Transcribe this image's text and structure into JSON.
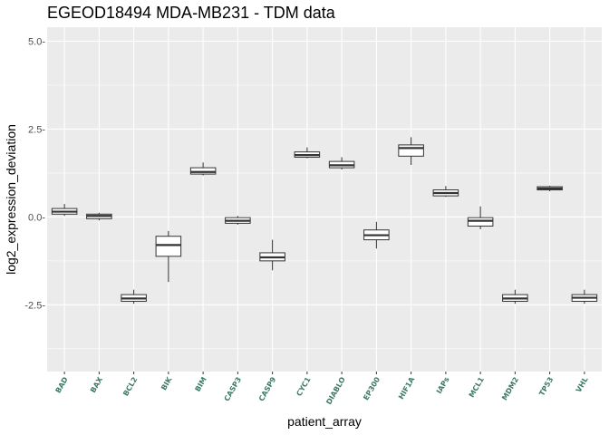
{
  "chart_data": {
    "type": "boxplot",
    "title": "EGEOD18494 MDA-MB231 - TDM data",
    "xlabel": "patient_array",
    "ylabel": "log2_expression_deviation",
    "ylim": [
      -4.4,
      5.4
    ],
    "yticks": [
      5.0,
      2.5,
      0.0,
      -2.5
    ],
    "ytick_labels": [
      "5.0-",
      "2.5-",
      "0.0-",
      "-2.5-"
    ],
    "grid": true,
    "legend": "none",
    "colors": {
      "panel_bg": "#ebebeb",
      "grid": "#ffffff",
      "box_fill": "#ffffff",
      "box_line": "#333333",
      "xtick_text": "#3c7a64"
    },
    "categories": [
      "BAD",
      "BAX",
      "BCL2",
      "BIK",
      "BIM",
      "CASP3",
      "CASP9",
      "CYC1",
      "DIABLO",
      "EP300",
      "HIF1A",
      "IAPs",
      "MCL1",
      "MDM2",
      "TP53",
      "VHL"
    ],
    "boxes": [
      {
        "category": "BAD",
        "min": 0.03,
        "q1": 0.08,
        "median": 0.15,
        "q3": 0.24,
        "max": 0.37
      },
      {
        "category": "BAX",
        "min": -0.1,
        "q1": -0.05,
        "median": 0.03,
        "q3": 0.08,
        "max": 0.12
      },
      {
        "category": "BCL2",
        "min": -2.47,
        "q1": -2.4,
        "median": -2.32,
        "q3": -2.21,
        "max": -2.07
      },
      {
        "category": "BIK",
        "min": -1.85,
        "q1": -1.12,
        "median": -0.8,
        "q3": -0.55,
        "max": -0.4
      },
      {
        "category": "BIM",
        "min": 1.18,
        "q1": 1.22,
        "median": 1.28,
        "q3": 1.4,
        "max": 1.55
      },
      {
        "category": "CASP3",
        "min": -0.22,
        "q1": -0.18,
        "median": -0.11,
        "q3": -0.02,
        "max": 0.03
      },
      {
        "category": "CASP9",
        "min": -1.52,
        "q1": -1.25,
        "median": -1.15,
        "q3": -1.02,
        "max": -0.65
      },
      {
        "category": "CYC1",
        "min": 1.67,
        "q1": 1.7,
        "median": 1.76,
        "q3": 1.85,
        "max": 1.98
      },
      {
        "category": "DIABLO",
        "min": 1.35,
        "q1": 1.4,
        "median": 1.47,
        "q3": 1.58,
        "max": 1.7
      },
      {
        "category": "EP300",
        "min": -0.9,
        "q1": -0.65,
        "median": -0.52,
        "q3": -0.37,
        "max": -0.14
      },
      {
        "category": "HIF1A",
        "min": 1.48,
        "q1": 1.73,
        "median": 1.96,
        "q3": 2.05,
        "max": 2.27
      },
      {
        "category": "IAPs",
        "min": 0.57,
        "q1": 0.6,
        "median": 0.68,
        "q3": 0.77,
        "max": 0.88
      },
      {
        "category": "MCL1",
        "min": -0.35,
        "q1": -0.26,
        "median": -0.11,
        "q3": -0.02,
        "max": 0.3
      },
      {
        "category": "MDM2",
        "min": -2.47,
        "q1": -2.4,
        "median": -2.32,
        "q3": -2.21,
        "max": -2.07
      },
      {
        "category": "TP53",
        "min": 0.73,
        "q1": 0.77,
        "median": 0.81,
        "q3": 0.86,
        "max": 0.89
      },
      {
        "category": "VHL",
        "min": -2.47,
        "q1": -2.4,
        "median": -2.3,
        "q3": -2.21,
        "max": -2.07
      }
    ]
  }
}
